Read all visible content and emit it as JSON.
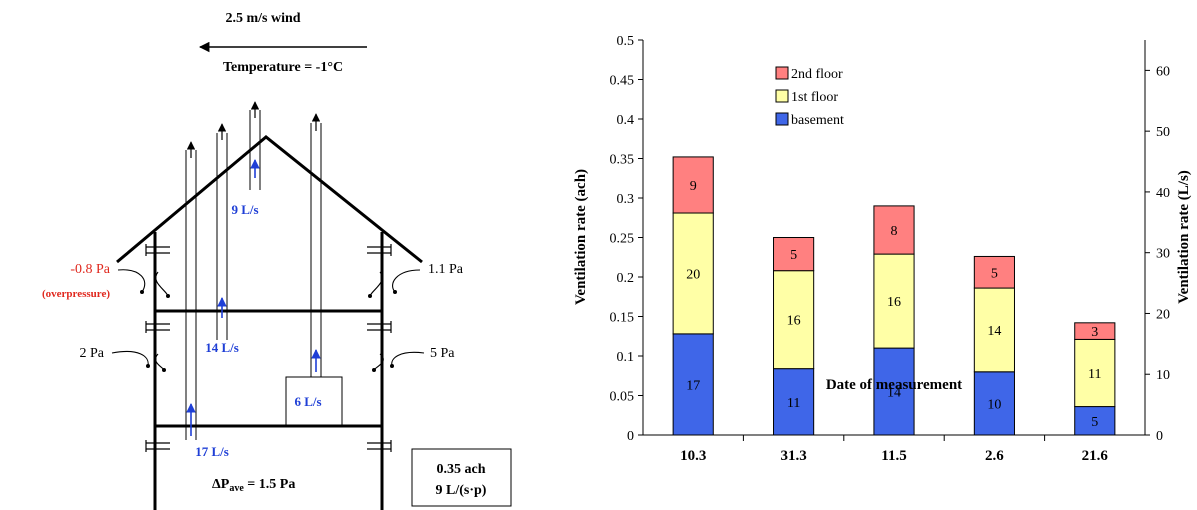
{
  "diagram": {
    "wind_label": "2.5 m/s wind",
    "temperature_label": "Temperature = -1°C",
    "flows": [
      "9 L/s",
      "14 L/s",
      "6 L/s",
      "17 L/s"
    ],
    "pressures": {
      "left_upper": "-0.8 Pa",
      "left_upper_note": "(overpressure)",
      "right_upper": "1.1 Pa",
      "left_lower": "2 Pa",
      "right_lower": "5 Pa"
    },
    "delta_p_prefix": "ΔP",
    "delta_p_sub": "ave",
    "delta_p_value": " = 1.5 Pa",
    "summary_ach": "0.35 ach",
    "summary_per_person": "9 L/(s·p)",
    "colors": {
      "flow": "#1f3fd6",
      "overpressure": "#e0281e"
    }
  },
  "chart_data": {
    "type": "bar",
    "stacked": true,
    "categories": [
      "10.3",
      "31.3",
      "11.5",
      "2.6",
      "21.6"
    ],
    "series": [
      {
        "name": "basement",
        "color": "#3f66e8",
        "values_ach": [
          0.128,
          0.084,
          0.11,
          0.08,
          0.036
        ],
        "labels": [
          "17",
          "11",
          "14",
          "10",
          "5"
        ]
      },
      {
        "name": "1st floor",
        "color": "#ffffa6",
        "values_ach": [
          0.153,
          0.124,
          0.119,
          0.106,
          0.085
        ],
        "labels": [
          "20",
          "16",
          "16",
          "14",
          "11"
        ]
      },
      {
        "name": "2nd floor",
        "color": "#ff8080",
        "values_ach": [
          0.071,
          0.042,
          0.061,
          0.04,
          0.021
        ],
        "labels": [
          "9",
          "5",
          "8",
          "5",
          "3"
        ]
      }
    ],
    "legend_order": [
      "2nd floor",
      "1st floor",
      "basement"
    ],
    "legend_position": "top-left",
    "xlabel": "Date of measurement",
    "ylabel": "Ventilation rate (ach)",
    "ylabel_right": "Ventilation rate (L/s)",
    "ylim": [
      0,
      0.5
    ],
    "yticks": [
      "0",
      "0.05",
      "0.1",
      "0.15",
      "0.2",
      "0.25",
      "0.3",
      "0.35",
      "0.4",
      "0.45",
      "0.5"
    ],
    "ylim_right": [
      0,
      65
    ],
    "yticks_right": [
      "0",
      "10",
      "20",
      "30",
      "40",
      "50",
      "60"
    ],
    "grid": false
  }
}
